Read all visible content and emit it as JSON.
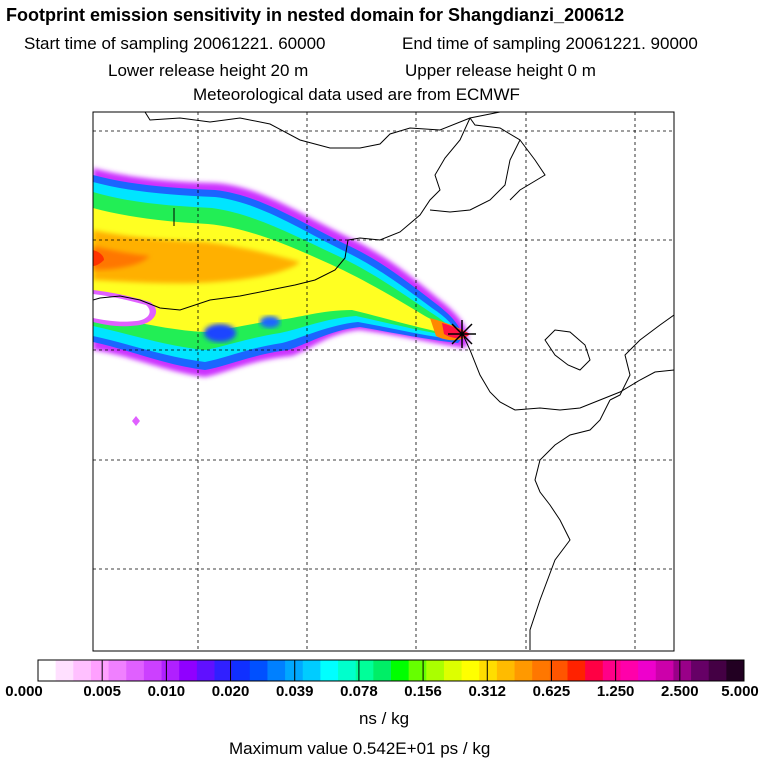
{
  "header": {
    "title": "Footprint emission sensitivity in nested domain for Shangdianzi_200612",
    "start_label": "Start time of sampling 20061221. 60000",
    "end_label": "End time of sampling 20061221. 90000",
    "lower_label": "Lower release height   20 m",
    "upper_label": "Upper release height    0 m",
    "met_label": "Meteorological data used are from ECMWF"
  },
  "colorbar": {
    "ticks": [
      "0.000",
      "0.005",
      "0.010",
      "0.020",
      "0.039",
      "0.078",
      "0.156",
      "0.312",
      "0.625",
      "1.250",
      "2.500",
      "5.000"
    ],
    "colors": [
      "#ffffff",
      "#ffe0ff",
      "#ffc0ff",
      "#ffa0ff",
      "#f080ff",
      "#e060ff",
      "#cc40ff",
      "#b020ff",
      "#9000ff",
      "#6010ff",
      "#3020ff",
      "#1030ff",
      "#0050ff",
      "#0080ff",
      "#00a8ff",
      "#00ccff",
      "#00ffff",
      "#00ffcc",
      "#00ff99",
      "#00ee66",
      "#00ff00",
      "#66ff00",
      "#aaff00",
      "#ddff00",
      "#ffff00",
      "#ffdd00",
      "#ffbb00",
      "#ff9900",
      "#ff7700",
      "#ff5500",
      "#ff2200",
      "#ff0044",
      "#ff0088",
      "#ff00aa",
      "#ee00cc",
      "#cc00aa",
      "#990088",
      "#660066",
      "#440044",
      "#220022"
    ],
    "unit": "ns / kg",
    "max_label": "Maximum value  0.542E+01 ps / kg"
  },
  "chart_data": {
    "type": "heatmap",
    "title": "Footprint emission sensitivity in nested domain for Shangdianzi_200612",
    "colorbar_levels": [
      0.0,
      0.005,
      0.01,
      0.02,
      0.039,
      0.078,
      0.156,
      0.312,
      0.625,
      1.25,
      2.5,
      5.0
    ],
    "colorbar_unit": "ns / kg",
    "maximum_value": "0.542E+01 ps / kg",
    "grid": true,
    "receptor_marker": "star"
  }
}
